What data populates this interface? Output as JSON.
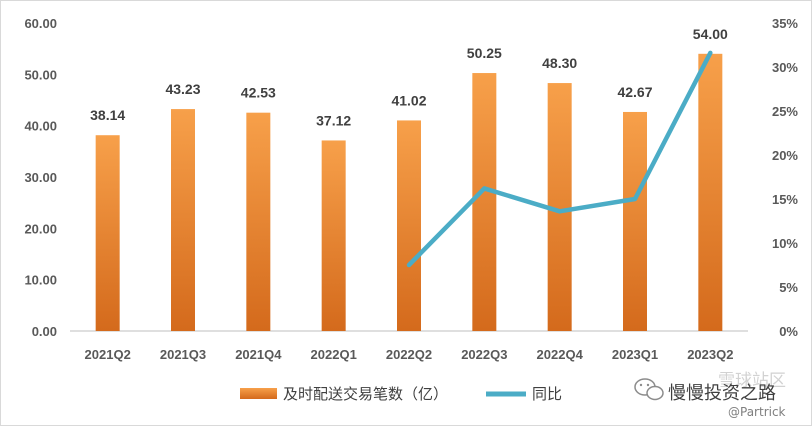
{
  "chart_data": {
    "type": "bar+line",
    "categories": [
      "2021Q2",
      "2021Q3",
      "2021Q4",
      "2022Q1",
      "2022Q2",
      "2022Q3",
      "2022Q4",
      "2023Q1",
      "2023Q2"
    ],
    "series": [
      {
        "name": "及时配送交易笔数（亿）",
        "type": "bar",
        "axis": "left",
        "values": [
          38.14,
          43.23,
          42.53,
          37.12,
          41.02,
          50.25,
          48.3,
          42.67,
          54.0
        ],
        "data_labels": [
          "38.14",
          "43.23",
          "42.53",
          "37.12",
          "41.02",
          "50.25",
          "48.30",
          "42.67",
          "54.00"
        ],
        "color": "#ED7D31"
      },
      {
        "name": "同比",
        "type": "line",
        "axis": "right",
        "values": [
          null,
          null,
          null,
          null,
          7.5,
          16.2,
          13.6,
          15.0,
          31.6
        ],
        "color": "#4BACC6"
      }
    ],
    "y_left": {
      "min": 0,
      "max": 60,
      "ticks": [
        "0.00",
        "10.00",
        "20.00",
        "30.00",
        "40.00",
        "50.00",
        "60.00"
      ]
    },
    "y_right": {
      "min": 0,
      "max": 35,
      "ticks": [
        "0%",
        "5%",
        "10%",
        "15%",
        "20%",
        "25%",
        "30%",
        "35%"
      ]
    },
    "grid": false,
    "legend_position": "bottom"
  },
  "watermark": {
    "line1": "慢慢投资之路",
    "line2": "@Partrick",
    "stamp": "雪球站区"
  }
}
